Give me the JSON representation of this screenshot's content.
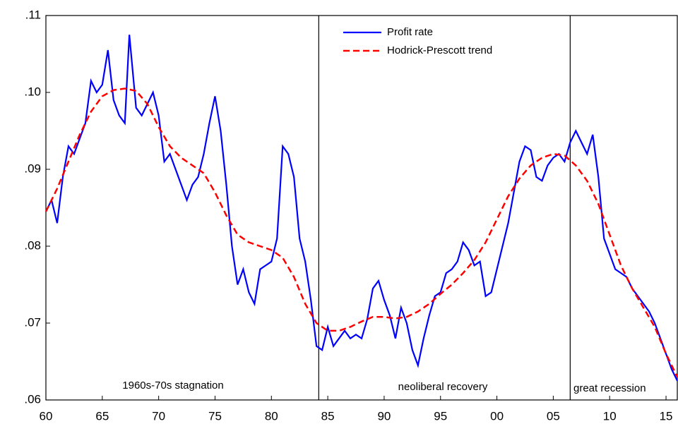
{
  "chart_data": {
    "type": "line",
    "annotations": [
      "1960s-70s stagnation",
      "neoliberal recovery",
      "great recession"
    ],
    "vlines": [
      1984.2,
      2006.5
    ],
    "legend": "top-center",
    "xlim": [
      1960,
      2016
    ],
    "ylim": [
      0.06,
      0.11
    ],
    "xticks": [
      {
        "value": 1960,
        "label": "60"
      },
      {
        "value": 1965,
        "label": "65"
      },
      {
        "value": 1970,
        "label": "70"
      },
      {
        "value": 1975,
        "label": "75"
      },
      {
        "value": 1980,
        "label": "80"
      },
      {
        "value": 1985,
        "label": "85"
      },
      {
        "value": 1990,
        "label": "90"
      },
      {
        "value": 1995,
        "label": "95"
      },
      {
        "value": 2000,
        "label": "00"
      },
      {
        "value": 2005,
        "label": "05"
      },
      {
        "value": 2010,
        "label": "10"
      },
      {
        "value": 2015,
        "label": "15"
      }
    ],
    "yticks": [
      {
        "value": 0.06,
        "label": ".06"
      },
      {
        "value": 0.07,
        "label": ".07"
      },
      {
        "value": 0.08,
        "label": ".08"
      },
      {
        "value": 0.09,
        "label": ".09"
      },
      {
        "value": 0.1,
        "label": ".10"
      },
      {
        "value": 0.11,
        "label": ".11"
      }
    ],
    "series": [
      {
        "name": "Profit rate",
        "color": "#0000ff",
        "dash": false,
        "x": [
          1960,
          1960.5,
          1961,
          1961.5,
          1962,
          1962.5,
          1963,
          1963.5,
          1964,
          1964.5,
          1965,
          1965.5,
          1966,
          1966.5,
          1967,
          1967.4,
          1968,
          1968.5,
          1969,
          1969.5,
          1970,
          1970.5,
          1971,
          1971.5,
          1972,
          1972.5,
          1973,
          1973.5,
          1974,
          1974.5,
          1975,
          1975.5,
          1976,
          1976.5,
          1977,
          1977.5,
          1978,
          1978.5,
          1979,
          1979.5,
          1980,
          1980.5,
          1981,
          1981.5,
          1982,
          1982.5,
          1983,
          1983.5,
          1984,
          1984.5,
          1985,
          1985.5,
          1986,
          1986.5,
          1987,
          1987.5,
          1988,
          1988.5,
          1989,
          1989.5,
          1990,
          1990.5,
          1991,
          1991.5,
          1992,
          1992.5,
          1993,
          1993.5,
          1994,
          1994.5,
          1995,
          1995.5,
          1996,
          1996.5,
          1997,
          1997.5,
          1998,
          1998.5,
          1999,
          1999.5,
          2000,
          2000.5,
          2001,
          2001.5,
          2002,
          2002.5,
          2003,
          2003.5,
          2004,
          2004.5,
          2005,
          2005.5,
          2006,
          2006.5,
          2007,
          2007.5,
          2008,
          2008.5,
          2009,
          2009.5,
          2010,
          2010.5,
          2011,
          2011.5,
          2012,
          2012.5,
          2013,
          2013.5,
          2014,
          2014.5,
          2015,
          2015.5,
          2016
        ],
        "values": [
          0.0845,
          0.086,
          0.083,
          0.089,
          0.093,
          0.092,
          0.094,
          0.096,
          0.1015,
          0.1,
          0.101,
          0.1055,
          0.099,
          0.097,
          0.096,
          0.1075,
          0.098,
          0.097,
          0.0985,
          0.1,
          0.097,
          0.091,
          0.092,
          0.09,
          0.088,
          0.086,
          0.088,
          0.089,
          0.092,
          0.096,
          0.0995,
          0.095,
          0.088,
          0.08,
          0.075,
          0.077,
          0.074,
          0.0725,
          0.077,
          0.0775,
          0.078,
          0.081,
          0.093,
          0.092,
          0.089,
          0.081,
          0.078,
          0.073,
          0.067,
          0.0665,
          0.0695,
          0.067,
          0.068,
          0.069,
          0.068,
          0.0685,
          0.068,
          0.0705,
          0.0745,
          0.0755,
          0.073,
          0.071,
          0.068,
          0.072,
          0.07,
          0.0665,
          0.0645,
          0.068,
          0.071,
          0.0735,
          0.074,
          0.0765,
          0.077,
          0.078,
          0.0805,
          0.0795,
          0.0775,
          0.078,
          0.0735,
          0.074,
          0.077,
          0.08,
          0.083,
          0.087,
          0.091,
          0.093,
          0.0925,
          0.089,
          0.0885,
          0.0905,
          0.0915,
          0.092,
          0.091,
          0.0935,
          0.095,
          0.0935,
          0.092,
          0.0945,
          0.089,
          0.081,
          0.079,
          0.077,
          0.0765,
          0.076,
          0.0745,
          0.0735,
          0.0725,
          0.0715,
          0.07,
          0.068,
          0.066,
          0.064,
          0.0625
        ]
      },
      {
        "name": "Hodrick-Prescott trend",
        "color": "#ff0000",
        "dash": true,
        "x": [
          1960,
          1961,
          1962,
          1963,
          1964,
          1965,
          1966,
          1967,
          1968,
          1969,
          1970,
          1971,
          1972,
          1973,
          1974,
          1975,
          1976,
          1977,
          1978,
          1979,
          1980,
          1981,
          1982,
          1983,
          1984,
          1985,
          1986,
          1987,
          1988,
          1989,
          1990,
          1991,
          1992,
          1993,
          1994,
          1995,
          1996,
          1997,
          1998,
          1999,
          2000,
          2001,
          2002,
          2003,
          2004,
          2005,
          2006,
          2007,
          2008,
          2009,
          2010,
          2011,
          2012,
          2013,
          2014,
          2015,
          2016
        ],
        "values": [
          0.0845,
          0.0875,
          0.091,
          0.0945,
          0.0975,
          0.0995,
          0.1003,
          0.1005,
          0.1002,
          0.0985,
          0.0955,
          0.093,
          0.0915,
          0.0905,
          0.0895,
          0.087,
          0.084,
          0.0815,
          0.0805,
          0.08,
          0.0795,
          0.0785,
          0.076,
          0.0725,
          0.07,
          0.069,
          0.069,
          0.0695,
          0.0702,
          0.0708,
          0.0708,
          0.0706,
          0.0708,
          0.0715,
          0.0725,
          0.0738,
          0.075,
          0.0765,
          0.0782,
          0.0805,
          0.0835,
          0.0865,
          0.0888,
          0.0905,
          0.0915,
          0.092,
          0.0918,
          0.0905,
          0.0885,
          0.0855,
          0.0815,
          0.0775,
          0.0745,
          0.072,
          0.0695,
          0.066,
          0.063
        ]
      }
    ]
  }
}
